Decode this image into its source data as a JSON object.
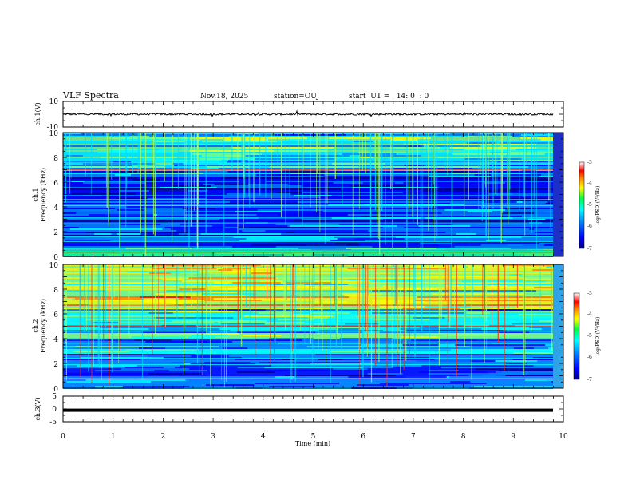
{
  "chart_data": {
    "type": "heatmap",
    "header": {
      "title": "VLF Spectra",
      "date": "Nov.18, 2025",
      "station": "station=OUJ",
      "start": "start  UT =   14: 0  : 0"
    },
    "x": {
      "label": "Time  (min)",
      "range": [
        0,
        10
      ],
      "ticks": [
        "0",
        "1",
        "2",
        "3",
        "4",
        "5",
        "6",
        "7",
        "8",
        "9",
        "10"
      ]
    },
    "ch1_wave": {
      "ylabel": "ch.1(V)",
      "ylim": [
        -10,
        10
      ],
      "ticks": [
        "10",
        "-10"
      ],
      "baseline": 0,
      "color": "#000000"
    },
    "ch1_spec": {
      "ylabel_line1": "ch.1",
      "ylabel_line2": "Frequency  (kHz)",
      "ylim": [
        0,
        10
      ],
      "ticks": [
        "10",
        "8",
        "6",
        "4",
        "2",
        "0"
      ],
      "colorbar": {
        "label": "log(PSD)(V²/Hz)",
        "range": [
          -7,
          -3
        ],
        "ticks": [
          "-3",
          "-4",
          "-5",
          "-6",
          "-7"
        ]
      },
      "lines_khz": [
        0.4,
        0.5,
        1.2,
        1.6,
        2.7,
        3.1,
        4.1,
        4.6,
        7.0,
        7.6
      ],
      "red_lines_khz": [
        7.0,
        0.3,
        0.5
      ],
      "band_khz": [
        0.0,
        0.5
      ]
    },
    "ch2_spec": {
      "ylabel_line1": "ch.2",
      "ylabel_line2": "Frequency  (kHz)",
      "ylim": [
        0,
        10
      ],
      "ticks": [
        "10",
        "8",
        "6",
        "4",
        "2",
        "0"
      ],
      "colorbar": {
        "label": "log(PSD)(V²/Hz)",
        "range": [
          -7,
          -3
        ],
        "ticks": [
          "-3",
          "-4",
          "-5",
          "-6",
          "-7"
        ]
      },
      "lines_khz": [
        0.8,
        1.9,
        2.4,
        3.1,
        3.6,
        4.6,
        5.1,
        6.7,
        8.4
      ],
      "red_lines_khz": [
        6.7,
        5.0
      ]
    },
    "ch3_wave": {
      "ylabel": "ch.3(V)",
      "ylim": [
        -5,
        5
      ],
      "ticks": [
        "5",
        "0",
        "-5"
      ],
      "level": -0.5,
      "color": "#000000"
    },
    "colormap": [
      "#00008f",
      "#0000ff",
      "#0080ff",
      "#00ffff",
      "#80ff80",
      "#ffff00",
      "#ff8000",
      "#ff0000",
      "#ffffff"
    ]
  }
}
